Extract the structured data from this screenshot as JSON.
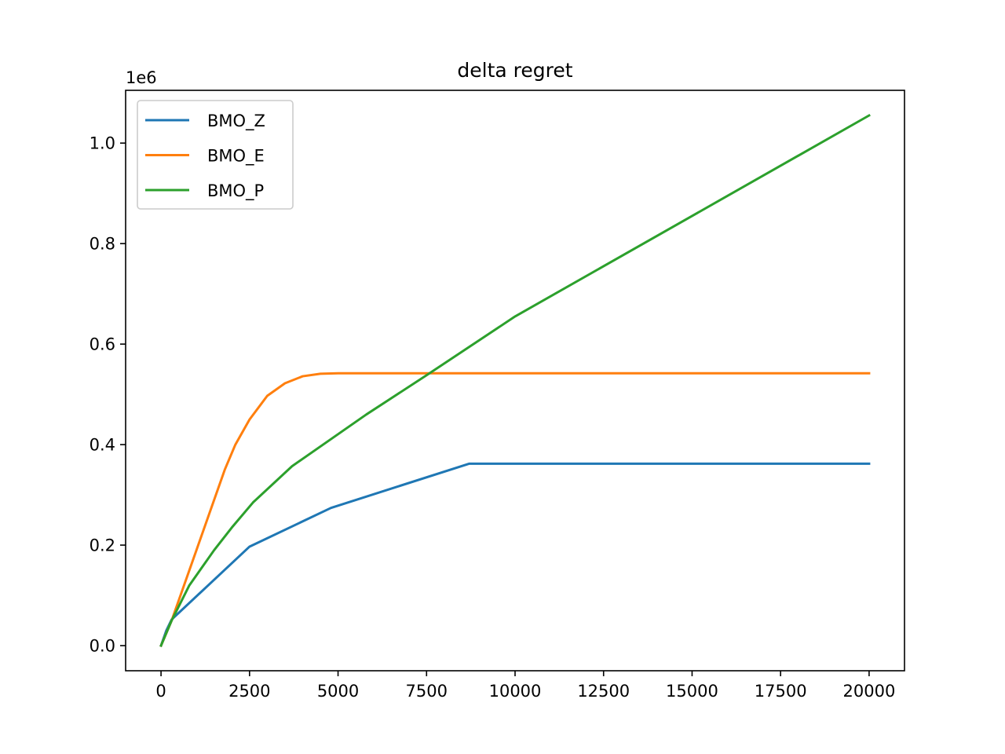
{
  "chart_data": {
    "type": "line",
    "title": "delta regret",
    "xlabel": "",
    "ylabel": "",
    "y_offset_label": "1e6",
    "xlim": [
      -1000,
      21000
    ],
    "ylim": [
      -0.05,
      1.105
    ],
    "x_ticks": [
      0,
      2500,
      5000,
      7500,
      10000,
      12500,
      15000,
      17500,
      20000
    ],
    "x_tick_labels": [
      "0",
      "2500",
      "5000",
      "7500",
      "10000",
      "12500",
      "15000",
      "17500",
      "20000"
    ],
    "y_ticks": [
      0.0,
      0.2,
      0.4,
      0.6,
      0.8,
      1.0
    ],
    "y_tick_labels": [
      "0.0",
      "0.2",
      "0.4",
      "0.6",
      "0.8",
      "1.0"
    ],
    "grid": false,
    "legend_position": "top-left",
    "series": [
      {
        "name": "BMO_Z",
        "color": "#1f77b4",
        "points": [
          [
            0,
            0.0
          ],
          [
            150,
            0.03
          ],
          [
            300,
            0.052
          ],
          [
            2500,
            0.197
          ],
          [
            4800,
            0.274
          ],
          [
            8700,
            0.362
          ],
          [
            20000,
            0.362
          ]
        ]
      },
      {
        "name": "BMO_E",
        "color": "#ff7f0e",
        "points": [
          [
            0,
            0.0
          ],
          [
            300,
            0.05
          ],
          [
            600,
            0.11
          ],
          [
            1000,
            0.19
          ],
          [
            1400,
            0.27
          ],
          [
            1800,
            0.35
          ],
          [
            2100,
            0.4
          ],
          [
            2500,
            0.45
          ],
          [
            3000,
            0.497
          ],
          [
            3500,
            0.522
          ],
          [
            4000,
            0.536
          ],
          [
            4500,
            0.541
          ],
          [
            5000,
            0.542
          ],
          [
            20000,
            0.542
          ]
        ]
      },
      {
        "name": "BMO_P",
        "color": "#2ca02c",
        "points": [
          [
            0,
            0.0
          ],
          [
            300,
            0.05
          ],
          [
            800,
            0.12
          ],
          [
            1500,
            0.19
          ],
          [
            2000,
            0.235
          ],
          [
            2600,
            0.285
          ],
          [
            3700,
            0.357
          ],
          [
            5800,
            0.46
          ],
          [
            7500,
            0.538
          ],
          [
            10000,
            0.655
          ],
          [
            20000,
            1.055
          ]
        ]
      }
    ]
  }
}
